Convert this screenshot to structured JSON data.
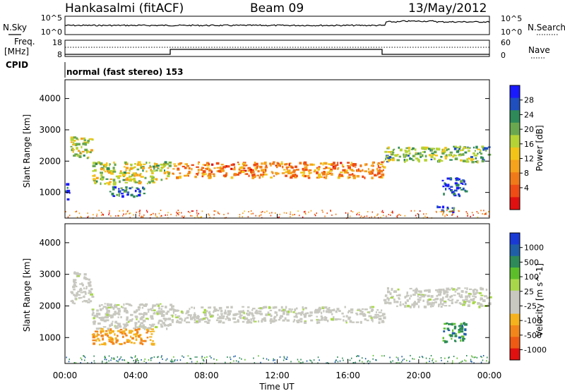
{
  "header": {
    "station": "Hankasalmi (fitACF)",
    "beam": "Beam 09",
    "date": "13/May/2012"
  },
  "left_labels": {
    "nsky": "N.Sky",
    "freq_line1": "Freq.",
    "freq_line2": "[MHz]",
    "cpid": "CPID"
  },
  "right_labels": {
    "nsearch": "N.Search",
    "nave": "Nave"
  },
  "strip_ticks": {
    "noise_left": [
      "10^5",
      "10^0"
    ],
    "noise_right": [
      "10^5",
      "10^0"
    ],
    "freq_left": [
      "18",
      "8"
    ],
    "freq_right": [
      "60",
      "0"
    ]
  },
  "cpid_text": "normal (fast stereo) 153",
  "panels": {
    "power": {
      "ylabel": "Slant Range [km]",
      "yticks": [
        "4000",
        "3000",
        "2000",
        "1000"
      ],
      "colorbar_label": "Power [dB]",
      "colorbar_ticks": [
        "28",
        "24",
        "20",
        "16",
        "12",
        "8",
        "4"
      ],
      "colors": [
        "#1a1aff",
        "#1f4fbf",
        "#2e8a58",
        "#6aa84f",
        "#b5d335",
        "#f2c418",
        "#f5a21c",
        "#f07a18",
        "#ee4c14",
        "#e01010"
      ]
    },
    "velocity": {
      "ylabel": "Slant Range [km]",
      "yticks": [
        "4000",
        "3000",
        "2000",
        "1000"
      ],
      "colorbar_label": "Velocity [m s^-1]",
      "colorbar_ticks": [
        "1000",
        "500",
        "100",
        "25",
        "-25",
        "-100",
        "-500",
        "-1000"
      ],
      "colors": [
        "#1a3ad6",
        "#1f5fa8",
        "#2e8a58",
        "#5cbf2a",
        "#a8d84a",
        "#c8c8c0",
        "#c8c8c0",
        "#f5b21c",
        "#f2861a",
        "#ee5a14",
        "#e01010"
      ]
    }
  },
  "xaxis": {
    "label": "Time UT",
    "ticks": [
      "00:00",
      "04:00",
      "08:00",
      "12:00",
      "16:00",
      "20:00",
      "00:00"
    ]
  },
  "chart_data": [
    {
      "type": "heatmap",
      "name": "power",
      "title": "",
      "xlabel": "Time UT",
      "ylabel": "Slant Range [km]",
      "xlim": [
        0,
        24
      ],
      "ylim": [
        180,
        4600
      ],
      "zlim": [
        0,
        30
      ],
      "zlabel": "Power [dB]",
      "features": [
        {
          "t0": 0.0,
          "t1": 0.3,
          "r0": 800,
          "r1": 1300,
          "z": 28
        },
        {
          "t0": 0.3,
          "t1": 1.5,
          "r0": 2100,
          "r1": 2800,
          "z": 16
        },
        {
          "t0": 1.5,
          "t1": 5.9,
          "r0": 1300,
          "r1": 2000,
          "z": 16
        },
        {
          "t0": 2.5,
          "t1": 4.5,
          "r0": 900,
          "r1": 1200,
          "z": 26
        },
        {
          "t0": 6.0,
          "t1": 18.0,
          "r0": 1500,
          "r1": 2000,
          "z": 8
        },
        {
          "t0": 18.0,
          "t1": 24.0,
          "r0": 2000,
          "r1": 2500,
          "z": 20
        },
        {
          "t0": 21.3,
          "t1": 22.6,
          "r0": 900,
          "r1": 1500,
          "z": 28
        },
        {
          "t0": 21.0,
          "t1": 22.0,
          "r0": 400,
          "r1": 600,
          "z": 26
        }
      ]
    },
    {
      "type": "heatmap",
      "name": "velocity",
      "title": "",
      "xlabel": "Time UT",
      "ylabel": "Slant Range [km]",
      "xlim": [
        0,
        24
      ],
      "ylim": [
        180,
        4600
      ],
      "zlim": [
        -1000,
        1000
      ],
      "zlabel": "Velocity [m s^-1]",
      "features": [
        {
          "t0": 0.3,
          "t1": 1.5,
          "r0": 2100,
          "r1": 3100,
          "z": 0
        },
        {
          "t0": 1.5,
          "t1": 6.0,
          "r0": 1300,
          "r1": 2100,
          "z": 0
        },
        {
          "t0": 1.5,
          "t1": 5.0,
          "r0": 800,
          "r1": 1300,
          "z": -100
        },
        {
          "t0": 6.0,
          "t1": 18.0,
          "r0": 1500,
          "r1": 2000,
          "z": 0
        },
        {
          "t0": 18.0,
          "t1": 24.0,
          "r0": 2000,
          "r1": 2600,
          "z": 0
        },
        {
          "t0": 21.3,
          "t1": 22.6,
          "r0": 900,
          "r1": 1500,
          "z": 100
        }
      ]
    }
  ]
}
